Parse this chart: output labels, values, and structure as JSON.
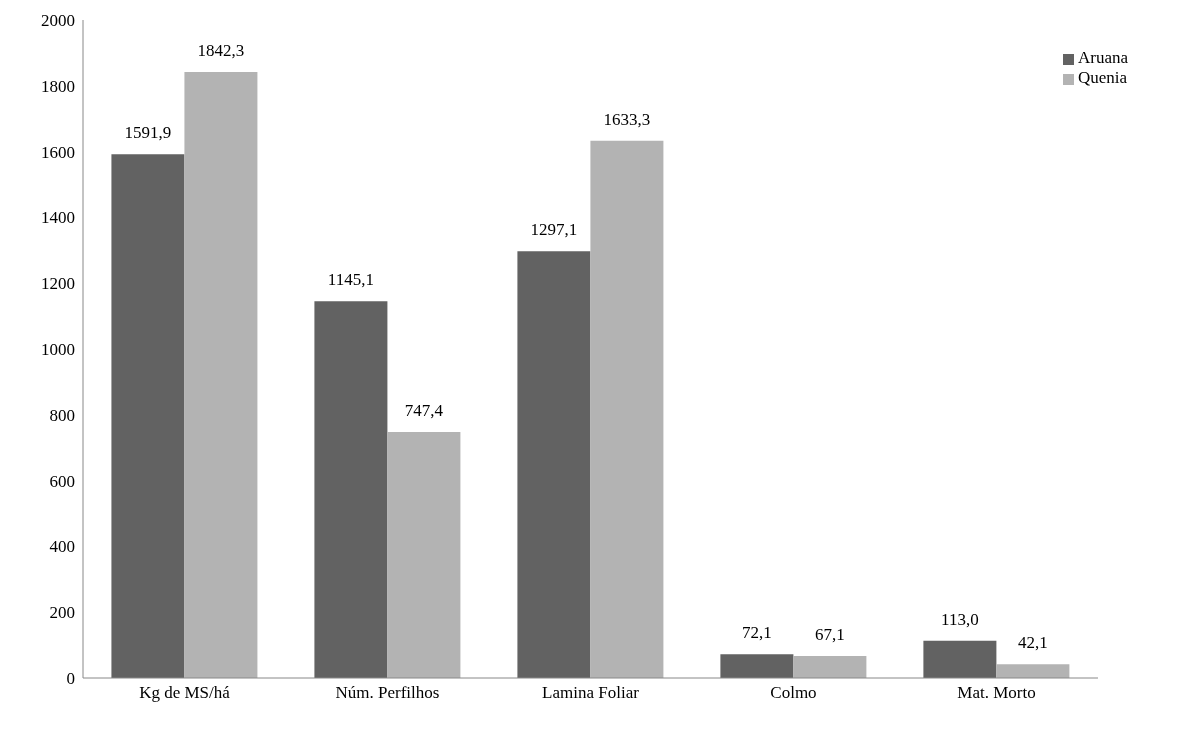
{
  "chart_data": {
    "type": "bar",
    "categories": [
      "Kg de MS/há",
      "Núm. Perfilhos",
      "Lamina Foliar",
      "Colmo",
      "Mat. Morto"
    ],
    "series": [
      {
        "name": "Aruana",
        "color": "#626262",
        "values": [
          1591.9,
          1145.1,
          1297.1,
          72.1,
          113.0
        ],
        "value_labels": [
          "1591,9",
          "1145,1",
          "1297,1",
          "72,1",
          "113,0"
        ]
      },
      {
        "name": "Quenia",
        "color": "#b3b3b3",
        "values": [
          1842.3,
          747.4,
          1633.3,
          67.1,
          42.1
        ],
        "value_labels": [
          "1842,3",
          "747,4",
          "1633,3",
          "67,1",
          "42,1"
        ]
      }
    ],
    "ylim": [
      0,
      2000
    ],
    "yticks": [
      0,
      200,
      400,
      600,
      800,
      1000,
      1200,
      1400,
      1600,
      1800,
      2000
    ],
    "grid": false,
    "legend": "top right"
  }
}
